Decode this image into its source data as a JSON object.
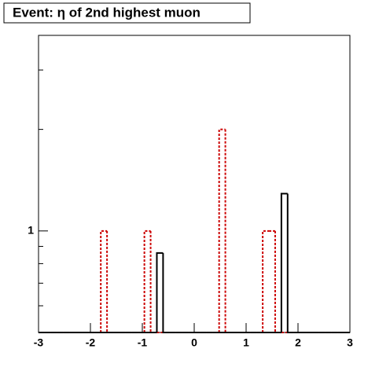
{
  "chart_data": {
    "type": "histogram",
    "title": "Event: η of 2nd highest muon",
    "bins": [
      -3,
      -2.88,
      -2.76,
      -2.64,
      -2.52,
      -2.4,
      -2.28,
      -2.16,
      -2.04,
      -1.92,
      -1.8,
      -1.68,
      -1.56,
      -1.44,
      -1.32,
      -1.2,
      -1.08,
      -0.96,
      -0.84,
      -0.72,
      -0.6,
      -0.48,
      -0.36,
      -0.24,
      -0.12,
      0,
      0.12,
      0.24,
      0.36,
      0.48,
      0.6,
      0.72,
      0.84,
      0.96,
      1.08,
      1.2,
      1.32,
      1.44,
      1.56,
      1.68,
      1.8,
      1.92,
      2.04,
      2.16,
      2.28,
      2.4,
      2.52,
      2.64,
      2.76,
      2.88,
      3
    ],
    "series": [
      {
        "color": "#cc0000",
        "dashed": true,
        "values": [
          0,
          0,
          0,
          0,
          0,
          0,
          0,
          0,
          0,
          0,
          1,
          0,
          0,
          0,
          0,
          0,
          0,
          1,
          0,
          0,
          0,
          0,
          0,
          0,
          0,
          0,
          0,
          0,
          0,
          2,
          0,
          0,
          0,
          0,
          0,
          0,
          1,
          1,
          0,
          0,
          0,
          0,
          0,
          0,
          0,
          0,
          0,
          0,
          0,
          0
        ]
      },
      {
        "color": "#000000",
        "dashed": false,
        "values": [
          0,
          0,
          0,
          0,
          0,
          0,
          0,
          0,
          0,
          0,
          0,
          0,
          0,
          0,
          0,
          0,
          0,
          0,
          0,
          0.86,
          0,
          0,
          0,
          0,
          0,
          0,
          0,
          0,
          0,
          0,
          0,
          0,
          0,
          0,
          0,
          0,
          0,
          0,
          0,
          1.29,
          0,
          0,
          0,
          0,
          0,
          0,
          0,
          0,
          0,
          0
        ]
      }
    ],
    "xlim": [
      -3,
      3
    ],
    "xticks": [
      -3,
      -2,
      -1,
      0,
      1,
      2,
      3
    ],
    "ylim": [
      0.5,
      3.8
    ],
    "ylog": true,
    "yticks": [
      1
    ],
    "yminorticks": [
      0.6,
      0.7,
      0.8,
      0.9,
      2,
      3
    ]
  }
}
